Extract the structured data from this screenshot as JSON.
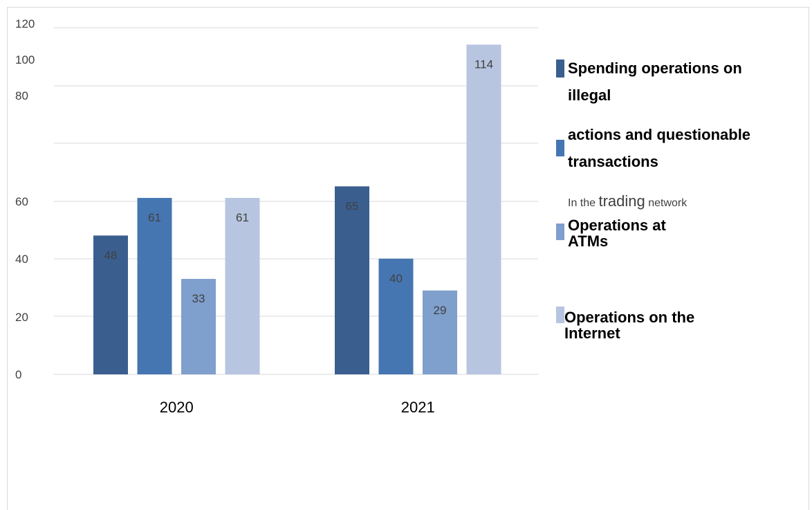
{
  "chart_data": {
    "type": "bar",
    "categories": [
      "2020",
      "2021"
    ],
    "series": [
      {
        "name": "Spending operations on illegal actions and questionable transactions",
        "values": [
          48,
          65
        ],
        "color": "#3a5f8f"
      },
      {
        "name": "In the trading network",
        "values": [
          61,
          40
        ],
        "color": "#4676b2"
      },
      {
        "name": "Operations at ATMs",
        "values": [
          33,
          29
        ],
        "color": "#7f9fcc"
      },
      {
        "name": "Operations on the Internet",
        "values": [
          61,
          114
        ],
        "color": "#b7c5e0"
      }
    ],
    "y_tick_labels": [
      "0",
      "20",
      "40",
      "60",
      "80",
      "100",
      "120"
    ],
    "grid": true,
    "legend_position": "right"
  },
  "legend": {
    "item1_line1": "Spending operations on",
    "item1_line2": "illegal",
    "item2_line1": "actions and questionable",
    "item2_line2": "transactions",
    "note_prefix": "In the ",
    "note_mid": "trading",
    "note_suffix": " network",
    "item3_line1": "Operations at",
    "item3_line2": "ATMs",
    "item4_line1": "Operations on the",
    "item4_line2": "Internet"
  }
}
